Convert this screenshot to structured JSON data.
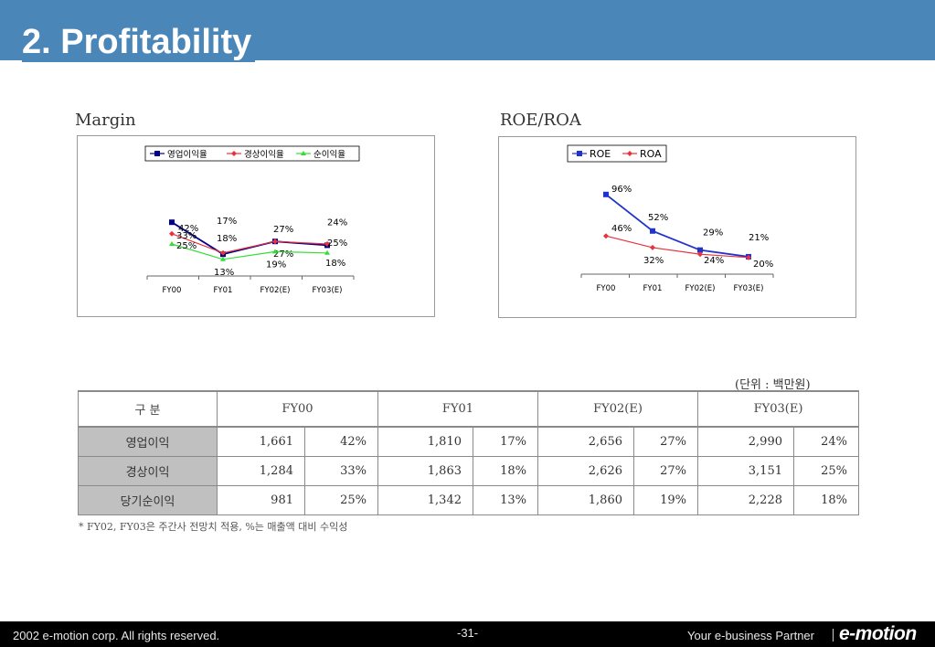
{
  "page": {
    "title": "2. Profitability",
    "unit_note": "(단위 : 백만원)",
    "footnote": "* FY02, FY03은 주간사 전망치 적용,  %는 매출액 대비 수익성"
  },
  "footer": {
    "copyright": "2002 e-motion corp. All rights reserved.",
    "page_number": "-31-",
    "tagline": "Your e-business Partner",
    "logo": "e-motion"
  },
  "colors": {
    "header": "#4a86b8",
    "series_dark_blue": "#00008b",
    "series_red": "#e8323c",
    "series_green": "#33dd33",
    "series_blue": "#2233cc"
  },
  "chart_data": [
    {
      "type": "line",
      "title": "Margin",
      "categories": [
        "FY00",
        "FY01",
        "FY02(E)",
        "FY03(E)"
      ],
      "series": [
        {
          "name": "영업이익율",
          "values": [
            42,
            17,
            27,
            24
          ],
          "labels": [
            "42%",
            "17%",
            "27%",
            "24%"
          ],
          "color": "#00008b",
          "marker": "square"
        },
        {
          "name": "경상이익율",
          "values": [
            33,
            18,
            27,
            25
          ],
          "labels": [
            "33%",
            "18%",
            "27%",
            "25%"
          ],
          "color": "#e8323c",
          "marker": "diamond"
        },
        {
          "name": "순이익율",
          "values": [
            25,
            13,
            19,
            18
          ],
          "labels": [
            "25%",
            "13%",
            "19%",
            "18%"
          ],
          "color": "#33dd33",
          "marker": "triangle"
        }
      ],
      "ylim": [
        0,
        50
      ],
      "legend": "top",
      "grid": false
    },
    {
      "type": "line",
      "title": "ROE/ROA",
      "categories": [
        "FY00",
        "FY01",
        "FY02(E)",
        "FY03(E)"
      ],
      "series": [
        {
          "name": "ROE",
          "values": [
            96,
            52,
            29,
            21
          ],
          "labels": [
            "96%",
            "52%",
            "29%",
            "21%"
          ],
          "color": "#2233cc",
          "marker": "square"
        },
        {
          "name": "ROA",
          "values": [
            46,
            32,
            24,
            20
          ],
          "labels": [
            "46%",
            "32%",
            "24%",
            "20%"
          ],
          "color": "#e8323c",
          "marker": "diamond"
        }
      ],
      "ylim": [
        0,
        120
      ],
      "legend": "top",
      "grid": false
    }
  ],
  "table": {
    "corner": "구 분",
    "headers": [
      "FY00",
      "FY01",
      "FY02(E)",
      "FY03(E)"
    ],
    "rows": [
      {
        "label": "영업이익",
        "cells": [
          "1,661",
          "42%",
          "1,810",
          "17%",
          "2,656",
          "27%",
          "2,990",
          "24%"
        ]
      },
      {
        "label": "경상이익",
        "cells": [
          "1,284",
          "33%",
          "1,863",
          "18%",
          "2,626",
          "27%",
          "3,151",
          "25%"
        ]
      },
      {
        "label": "당기순이익",
        "cells": [
          "981",
          "25%",
          "1,342",
          "13%",
          "1,860",
          "19%",
          "2,228",
          "18%"
        ]
      }
    ]
  }
}
